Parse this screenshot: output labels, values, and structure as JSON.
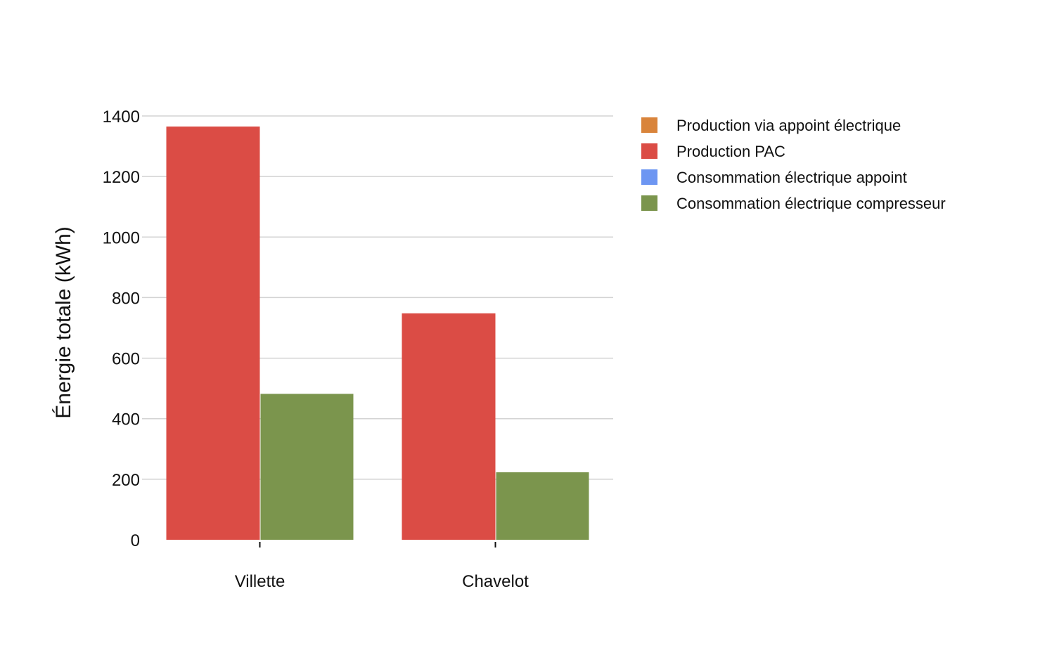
{
  "chart_data": {
    "type": "bar",
    "title": "",
    "xlabel": "",
    "ylabel": "Énergie totale (kWh)",
    "ylim": [
      0,
      1400
    ],
    "yticks": [
      0,
      200,
      400,
      600,
      800,
      1000,
      1200,
      1400
    ],
    "categories": [
      "Villette",
      "Chavelot"
    ],
    "grid": true,
    "legend_position": "right",
    "series": [
      {
        "name": "Production via appoint électrique",
        "color": "#d9843b",
        "values": [
          0,
          0
        ]
      },
      {
        "name": "Production PAC",
        "color": "#db4c45",
        "values": [
          1365,
          748
        ]
      },
      {
        "name": "Consommation électrique appoint",
        "color": "#6d96f2",
        "values": [
          0,
          0
        ]
      },
      {
        "name": "Consommation électrique compresseur",
        "color": "#7b954d",
        "values": [
          482,
          223
        ]
      }
    ]
  }
}
